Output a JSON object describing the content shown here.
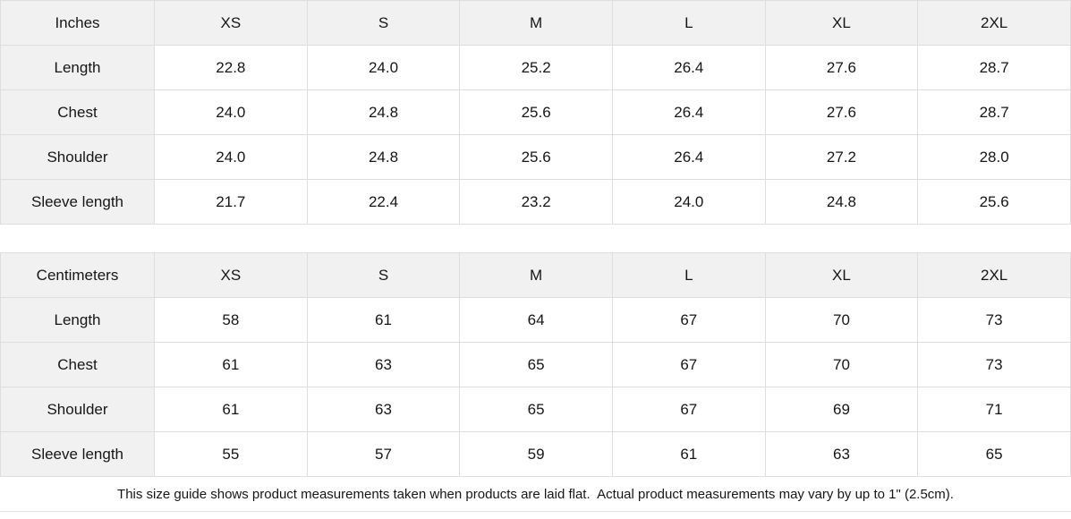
{
  "tables": [
    {
      "unit_label": "Inches",
      "sizes": [
        "XS",
        "S",
        "M",
        "L",
        "XL",
        "2XL"
      ],
      "rows": [
        {
          "label": "Length",
          "values": [
            "22.8",
            "24.0",
            "25.2",
            "26.4",
            "27.6",
            "28.7"
          ]
        },
        {
          "label": "Chest",
          "values": [
            "24.0",
            "24.8",
            "25.6",
            "26.4",
            "27.6",
            "28.7"
          ]
        },
        {
          "label": "Shoulder",
          "values": [
            "24.0",
            "24.8",
            "25.6",
            "26.4",
            "27.2",
            "28.0"
          ]
        },
        {
          "label": "Sleeve length",
          "values": [
            "21.7",
            "22.4",
            "23.2",
            "24.0",
            "24.8",
            "25.6"
          ]
        }
      ]
    },
    {
      "unit_label": "Centimeters",
      "sizes": [
        "XS",
        "S",
        "M",
        "L",
        "XL",
        "2XL"
      ],
      "rows": [
        {
          "label": "Length",
          "values": [
            "58",
            "61",
            "64",
            "67",
            "70",
            "73"
          ]
        },
        {
          "label": "Chest",
          "values": [
            "61",
            "63",
            "65",
            "67",
            "70",
            "73"
          ]
        },
        {
          "label": "Shoulder",
          "values": [
            "61",
            "63",
            "65",
            "67",
            "69",
            "71"
          ]
        },
        {
          "label": "Sleeve length",
          "values": [
            "55",
            "57",
            "59",
            "61",
            "63",
            "65"
          ]
        }
      ]
    }
  ],
  "footer": {
    "note": "This size guide shows product measurements taken when products are laid flat.  Actual product measurements may vary by up to 1\" (2.5cm)."
  },
  "colors": {
    "header_bg": "#f1f1f1",
    "cell_bg": "#ffffff",
    "border": "#dedede",
    "text": "#161616"
  }
}
